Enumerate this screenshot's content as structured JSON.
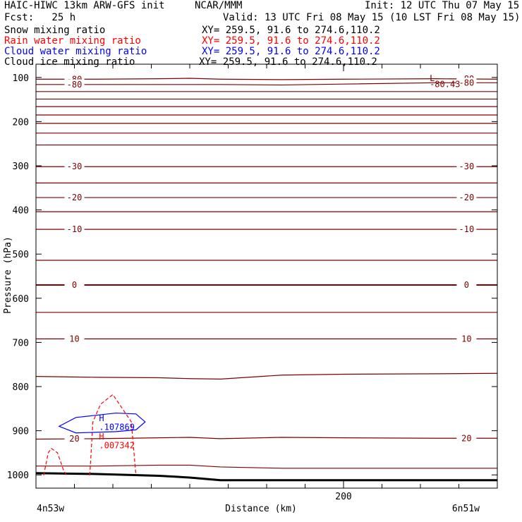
{
  "header": {
    "model": "HAIC-HIWC 13km ARW-GFS init",
    "org": "NCAR/MMM",
    "init": "Init: 12 UTC Thu 07 May 15",
    "fcst": "Fcst:   25 h",
    "valid": "Valid: 13 UTC Fri 08 May 15 (10 LST Fri 08 May 15)",
    "fields": [
      {
        "name": "Snow mixing ratio",
        "xy": "XY= 259.5, 91.6 to 274.6,110.2",
        "color": "#000000"
      },
      {
        "name": "Rain water mixing ratio",
        "xy": "XY= 259.5, 91.6 to 274.6,110.2",
        "color": "#ff0000"
      },
      {
        "name": "Cloud water mixing ratio",
        "xy": "XY= 259.5, 91.6 to 274.6,110.2",
        "color": "#0000ff"
      },
      {
        "name": "Cloud ice mixing ratio",
        "xy": "XY= 259.5, 91.6 to 274.6,110.2",
        "color": "#000000"
      }
    ]
  },
  "chart_data": {
    "type": "line",
    "title": "",
    "xlabel": "Distance (km)",
    "ylabel": "Pressure (hPa)",
    "xlim": [
      0,
      300
    ],
    "ylim": [
      1030,
      70
    ],
    "x_ticks": [
      200
    ],
    "y_ticks": [
      100,
      200,
      300,
      400,
      500,
      600,
      700,
      800,
      900,
      1000
    ],
    "x_endpoint_labels": [
      "4n53w",
      "6n51w"
    ],
    "colors": {
      "temperature": "#800000",
      "terrain": "#000000",
      "rain": "#ff0000",
      "cloud_water": "#0000ff"
    },
    "temperature_contours": [
      {
        "level": -80,
        "p": [
          104,
          104,
          103,
          102,
          104,
          105,
          104,
          103,
          104
        ]
      },
      {
        "level": -80,
        "p": [
          116,
          116,
          116,
          116,
          116,
          117,
          115,
          112,
          112
        ]
      },
      {
        "level": null,
        "p": [
          132,
          132,
          132,
          132,
          132,
          132,
          132,
          132,
          132
        ]
      },
      {
        "level": null,
        "p": [
          149,
          149,
          149,
          149,
          149,
          149,
          149,
          149,
          149
        ]
      },
      {
        "level": null,
        "p": [
          166,
          166,
          166,
          166,
          166,
          166,
          166,
          166,
          166
        ]
      },
      {
        "level": null,
        "p": [
          185,
          185,
          185,
          185,
          185,
          185,
          185,
          185,
          185
        ]
      },
      {
        "level": null,
        "p": [
          204,
          204,
          204,
          204,
          204,
          204,
          204,
          204,
          204
        ]
      },
      {
        "level": null,
        "p": [
          226,
          226,
          226,
          226,
          226,
          226,
          226,
          226,
          226
        ]
      },
      {
        "level": null,
        "p": [
          253,
          253,
          253,
          253,
          253,
          253,
          253,
          253,
          253
        ]
      },
      {
        "level": -30,
        "p": [
          302,
          302,
          302,
          302,
          302,
          302,
          302,
          302,
          302
        ]
      },
      {
        "level": null,
        "p": [
          339,
          339,
          339,
          339,
          339,
          339,
          339,
          339,
          339
        ]
      },
      {
        "level": -20,
        "p": [
          372,
          372,
          372,
          372,
          372,
          372,
          372,
          372,
          372
        ]
      },
      {
        "level": null,
        "p": [
          404,
          404,
          404,
          404,
          404,
          404,
          404,
          404,
          404
        ]
      },
      {
        "level": -10,
        "p": [
          444,
          444,
          444,
          444,
          444,
          444,
          444,
          444,
          444
        ]
      },
      {
        "level": null,
        "p": [
          514,
          514,
          514,
          514,
          514,
          514,
          514,
          514,
          514
        ]
      },
      {
        "level": 0,
        "p": [
          570,
          570,
          570,
          570,
          570,
          570,
          570,
          570,
          570
        ]
      },
      {
        "level": null,
        "p": [
          632,
          632,
          632,
          632,
          632,
          632,
          632,
          632,
          632
        ]
      },
      {
        "level": 10,
        "p": [
          692,
          692,
          692,
          692,
          692,
          692,
          692,
          692,
          692
        ]
      },
      {
        "level": null,
        "p": [
          777,
          779,
          780,
          782,
          783,
          774,
          772,
          771,
          770
        ]
      },
      {
        "level": 20,
        "p": [
          919,
          918,
          916,
          915,
          918,
          915,
          916,
          917,
          917
        ]
      },
      {
        "level": null,
        "p": [
          980,
          980,
          978,
          978,
          982,
          985,
          985,
          985,
          985
        ]
      }
    ],
    "contour_x": [
      0,
      40,
      80,
      100,
      120,
      160,
      200,
      260,
      300
    ],
    "contour_label_positions_km": [
      25,
      280
    ],
    "terrain": {
      "x": [
        0,
        40,
        80,
        100,
        120,
        150,
        200,
        300
      ],
      "p": [
        996,
        998,
        1002,
        1006,
        1012,
        1012,
        1012,
        1012
      ]
    },
    "annotations": [
      {
        "text": "L",
        "color": "#800000"
      },
      {
        "text": "-80.43",
        "color": "#800000"
      },
      {
        "text": "H",
        "color": "#0000ff"
      },
      {
        "text": ".107869",
        "color": "#0000ff"
      },
      {
        "text": "H",
        "color": "#ff0000"
      },
      {
        "text": ".007342",
        "color": "#ff0000"
      }
    ],
    "annotation_positions": [
      [
        256,
        108
      ],
      [
        256,
        122
      ],
      [
        41,
        878
      ],
      [
        41,
        898
      ],
      [
        41,
        920
      ],
      [
        41,
        940
      ]
    ],
    "rain_contours": [
      {
        "x": [
          5,
          8,
          10,
          14,
          18,
          20
        ],
        "p": [
          1001,
          950,
          940,
          950,
          990,
          1001
        ]
      },
      {
        "x": [
          35,
          37,
          42,
          50,
          62,
          65
        ],
        "p": [
          1001,
          880,
          840,
          818,
          880,
          1001
        ]
      }
    ],
    "cloud_water_contour": {
      "x": [
        15,
        26,
        52,
        65,
        71,
        65,
        52,
        26,
        15
      ],
      "p": [
        890,
        870,
        860,
        862,
        880,
        898,
        902,
        905,
        890
      ]
    }
  }
}
